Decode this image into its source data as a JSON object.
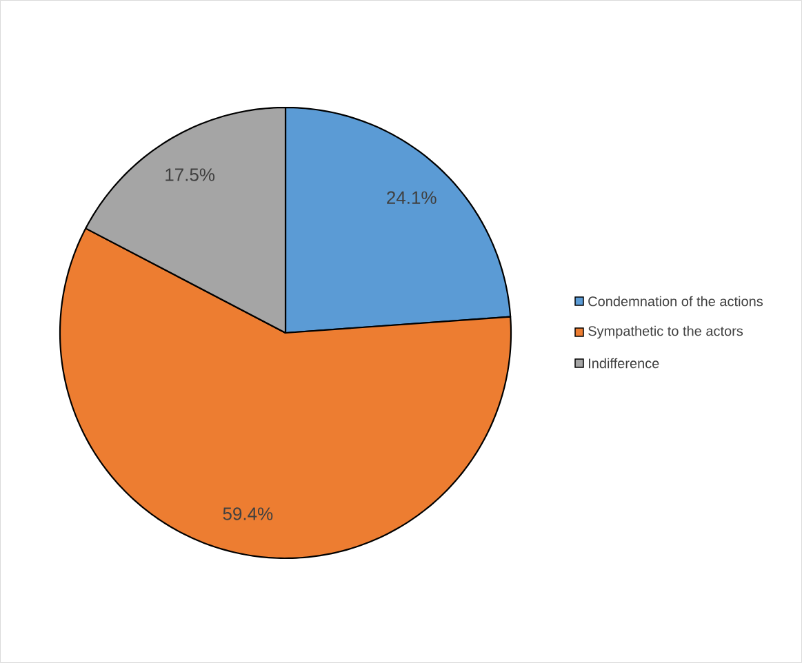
{
  "chart_data": {
    "type": "pie",
    "categories": [
      "Condemnation of the actions",
      "Sympathetic to the actors",
      "Indifference"
    ],
    "values": [
      24.1,
      59.4,
      17.5
    ],
    "colors": [
      "#5b9bd5",
      "#ed7d31",
      "#a5a5a5"
    ],
    "value_labels": [
      "24.1%",
      "59.4%",
      "17.5%"
    ],
    "legend": "right"
  }
}
